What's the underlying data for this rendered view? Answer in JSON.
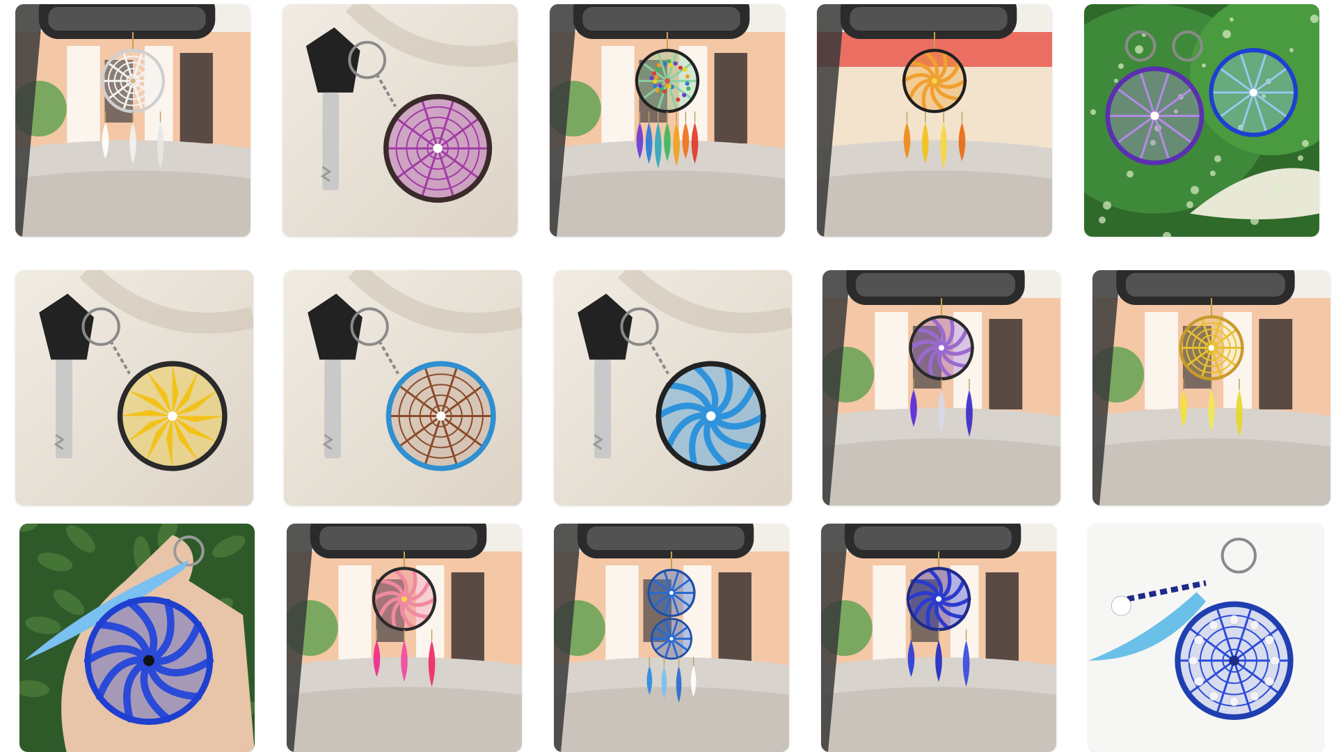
{
  "gallery": {
    "photos": [
      {
        "subject": "white-dreamcatcher-car",
        "scene": "car",
        "style": "web",
        "ring": "#cfcfcf",
        "web": "#f4f4f4",
        "center": "#d9b48a",
        "feathers": [
          "#ffffff",
          "#f1f1f1",
          "#e6e6e6"
        ]
      },
      {
        "subject": "purple-keychain",
        "scene": "key",
        "style": "radial",
        "ring": "#3a2a2a",
        "web": "#a23aa6",
        "center": "#ffffff",
        "feathers": []
      },
      {
        "subject": "rainbow-bead-dreamcatcher-car",
        "scene": "car",
        "style": "beads",
        "ring": "#222222",
        "web": "#8ad0a0",
        "center": "#e05050",
        "feathers": [
          "#6a3bd1",
          "#2f78d6",
          "#2fa8b8",
          "#3fb65a",
          "#f2a01c",
          "#f0701a",
          "#e23a2a"
        ]
      },
      {
        "subject": "orange-spiral-dreamcatcher-car",
        "scene": "car-pink",
        "style": "spiral",
        "ring": "#1f1f1f",
        "web": "#f0a030",
        "center": "#f5d84a",
        "feathers": [
          "#f08a1a",
          "#f2c21a",
          "#f6d648",
          "#e86a14"
        ]
      },
      {
        "subject": "purple-blue-keychains-leaf",
        "scene": "leaf",
        "style": "double",
        "ring": "#5a2fb0",
        "web": "#b48be8",
        "center": "#ffffff",
        "feathers": []
      },
      {
        "subject": "yellow-keychain",
        "scene": "key",
        "style": "star",
        "ring": "#2a2a2a",
        "web": "#f2c21a",
        "center": "#ffffff",
        "feathers": []
      },
      {
        "subject": "brown-blue-keychain",
        "scene": "key",
        "style": "web",
        "ring": "#2f8fd0",
        "web": "#8a4a2a",
        "center": "#ffffff",
        "feathers": []
      },
      {
        "subject": "blue-spiral-keychain",
        "scene": "key",
        "style": "spiral",
        "ring": "#222222",
        "web": "#2f93dc",
        "center": "#ffffff",
        "feathers": []
      },
      {
        "subject": "purple-spiral-dreamcatcher-car",
        "scene": "car",
        "style": "spiral",
        "ring": "#2a2a2a",
        "web": "#9a6ad0",
        "center": "#ffffff",
        "feathers": [
          "#5a2ad8",
          "#d8d8e8",
          "#3a2ac8"
        ]
      },
      {
        "subject": "yellow-dreamcatcher-car",
        "scene": "car",
        "style": "web",
        "ring": "#c89a2a",
        "web": "#e8c030",
        "center": "#ffffff",
        "feathers": [
          "#f2e23a",
          "#f0e85a",
          "#e6d82a"
        ]
      },
      {
        "subject": "blue-keychain-hand-feather",
        "scene": "hand",
        "style": "spiral",
        "ring": "#1f3fd0",
        "web": "#2a4ad8",
        "center": "#111111",
        "feathers": []
      },
      {
        "subject": "pink-dreamcatcher-car",
        "scene": "car",
        "style": "spiral",
        "ring": "#2a2a2a",
        "web": "#f08aa0",
        "center": "#f5d84a",
        "feathers": [
          "#f02a8a",
          "#f04aa0",
          "#f02a6a"
        ]
      },
      {
        "subject": "blue-double-dreamcatcher-car",
        "scene": "car",
        "style": "double-vertical",
        "ring": "#1f4fa8",
        "web": "#2a6ad0",
        "center": "#ffffff",
        "feathers": [
          "#2a8ae0",
          "#7ac0f0",
          "#2a6ad0",
          "#ffffff"
        ]
      },
      {
        "subject": "blue-white-dreamcatcher-car",
        "scene": "car",
        "style": "spiral",
        "ring": "#1f2a8a",
        "web": "#2a3ad0",
        "center": "#ffffff",
        "feathers": [
          "#2a3ad8",
          "#1f2ac0",
          "#3a4ae0"
        ]
      },
      {
        "subject": "blue-pearl-keychain-feather",
        "scene": "plain",
        "style": "pearl",
        "ring": "#1f3fb0",
        "web": "#2a4ad8",
        "center": "#1f2a8a",
        "feathers": [
          "#6ac0e8"
        ]
      }
    ]
  }
}
